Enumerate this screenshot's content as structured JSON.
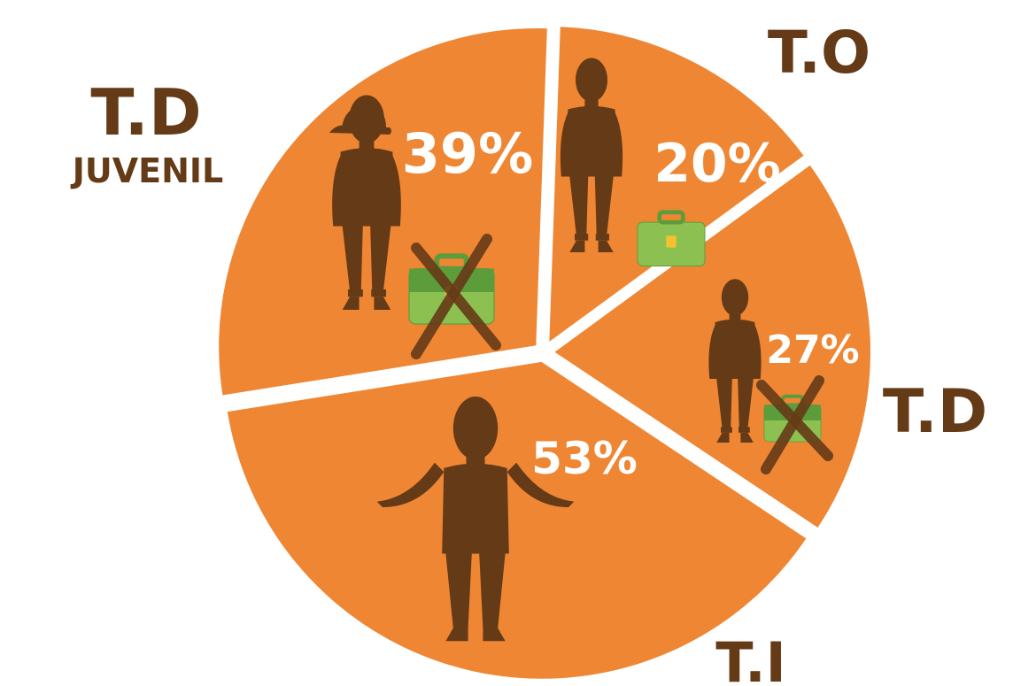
{
  "chart_data": {
    "type": "pie",
    "title": "",
    "slices": [
      {
        "label": "T.O",
        "sublabel": "",
        "value": 20,
        "display": "20%",
        "figure": "worker-with-briefcase"
      },
      {
        "label": "T.D",
        "sublabel": "",
        "value": 27,
        "display": "27%",
        "figure": "unemployed-with-crossed-briefcase"
      },
      {
        "label": "T.I",
        "sublabel": "",
        "value": 53,
        "display": "53%",
        "figure": "person-shrugging"
      },
      {
        "label": "T.D",
        "sublabel": "JUVENIL",
        "value": 39,
        "display": "39%",
        "figure": "youth-with-crossed-briefcase"
      }
    ],
    "legend": "none",
    "grid": false
  },
  "colors": {
    "slice": "#ef8633",
    "separator": "#ffffff",
    "figure": "#653a17",
    "label": "#653a17",
    "percent": "#ffffff",
    "briefcase": "#8cc152",
    "briefcase_dark": "#5d9c3a",
    "briefcase_clasp": "#f6c12f"
  },
  "icons": [
    "person-silhouette-icon",
    "briefcase-icon",
    "cross-mark-icon",
    "cap-icon"
  ]
}
